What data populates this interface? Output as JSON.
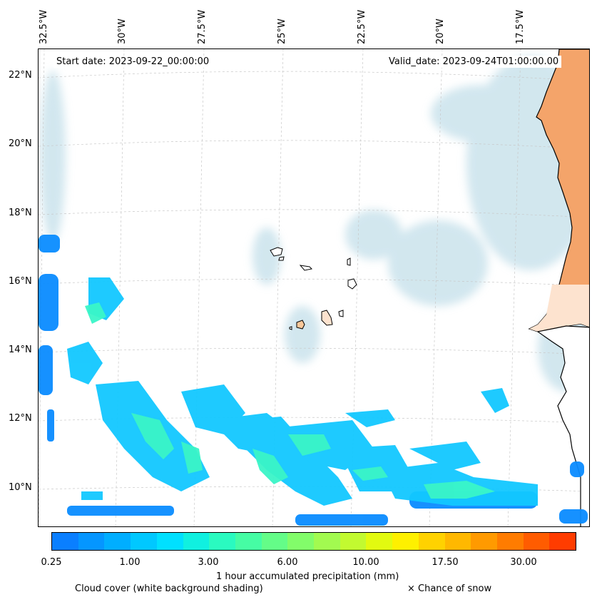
{
  "map": {
    "start_date": "Start date: 2023-09-22_00:00:00",
    "valid_date": "Valid_date: 2023-09-24T01:00:00.00",
    "lon_labels": [
      "32.5°W",
      "30°W",
      "27.5°W",
      "25°W",
      "22.5°W",
      "20°W",
      "17.5°W"
    ],
    "lat_labels": [
      "22°N",
      "20°N",
      "18°N",
      "16°N",
      "14°N",
      "12°N",
      "10°N"
    ]
  },
  "colorbar": {
    "label": "1 hour accumulated precipitation (mm)",
    "tick_labels": [
      "0.25",
      "1.00",
      "3.00",
      "6.00",
      "10.00",
      "17.50",
      "30.00"
    ],
    "colors": [
      "#0a7fff",
      "#0596ff",
      "#00aeff",
      "#00c8ff",
      "#00e0ff",
      "#10f0e0",
      "#2afac0",
      "#46fca4",
      "#64fc88",
      "#82fc6a",
      "#a2fa50",
      "#c2fa30",
      "#e2fa10",
      "#fef000",
      "#ffd200",
      "#ffb800",
      "#ff9a00",
      "#ff7c00",
      "#ff5c00",
      "#ff3c00"
    ]
  },
  "footer": {
    "cloud_cover": "Cloud cover (white background shading)",
    "snow": "× Chance of snow"
  }
}
